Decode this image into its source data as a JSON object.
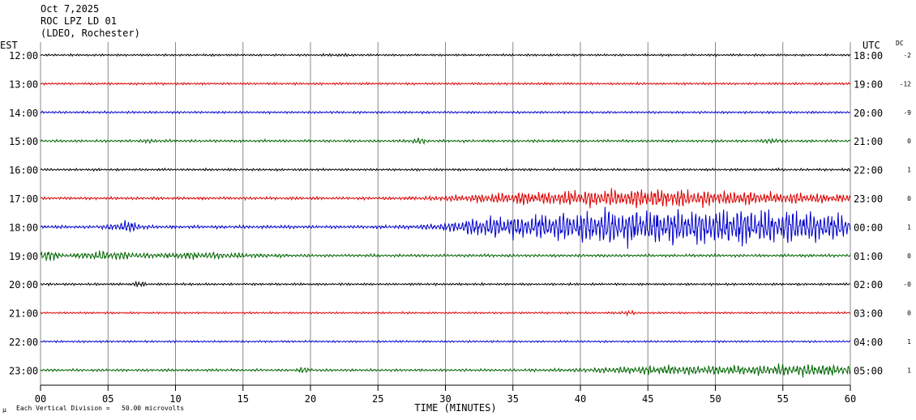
{
  "header": {
    "date": "Oct 7,2025",
    "station": "ROC LPZ LD 01",
    "network": "(LDEO, Rochester)"
  },
  "footer": {
    "icon_mark": "μ",
    "scale_note": "Each Vertical Division =   50.00 microvolts"
  },
  "chart_data": {
    "type": "line",
    "title": "",
    "left_axis_title": "EST",
    "right_axis_title": "UTC",
    "dc_header": "DC",
    "xlabel": "TIME (MINUTES)",
    "xlim": [
      0,
      60
    ],
    "x_ticks": [
      0,
      5,
      10,
      15,
      20,
      25,
      30,
      35,
      40,
      45,
      50,
      55,
      60
    ],
    "x_tick_labels": [
      "00",
      "05",
      "10",
      "15",
      "20",
      "25",
      "30",
      "35",
      "40",
      "45",
      "50",
      "55",
      "60"
    ],
    "grid": "vertical every 5 minutes",
    "colors": [
      "#000000",
      "#dd0000",
      "#0000cc",
      "#006600"
    ],
    "traces": [
      {
        "est": "12:00",
        "utc": "18:00",
        "dc": "-2",
        "color": "#000000",
        "base_amp": 1.5,
        "bursts": [
          [
            22.0,
            0.6,
            1.0
          ]
        ]
      },
      {
        "est": "13:00",
        "utc": "19:00",
        "dc": "-12",
        "color": "#dd0000",
        "base_amp": 1.6,
        "bursts": []
      },
      {
        "est": "14:00",
        "utc": "20:00",
        "dc": "-9",
        "color": "#0000cc",
        "base_amp": 1.6,
        "bursts": []
      },
      {
        "est": "15:00",
        "utc": "21:00",
        "dc": "0",
        "color": "#006600",
        "base_amp": 1.8,
        "bursts": [
          [
            28.0,
            0.5,
            3.0
          ],
          [
            54.2,
            0.4,
            2.5
          ],
          [
            8.2,
            0.6,
            1.2
          ]
        ]
      },
      {
        "est": "16:00",
        "utc": "22:00",
        "dc": "1",
        "color": "#000000",
        "base_amp": 1.6,
        "bursts": []
      },
      {
        "est": "17:00",
        "utc": "23:00",
        "dc": "0",
        "color": "#dd0000",
        "base_amp": 2.0,
        "bursts": [
          [
            34.0,
            3.0,
            2.5
          ],
          [
            42.0,
            5.5,
            9.5
          ],
          [
            49.0,
            4.0,
            5.0
          ],
          [
            57.0,
            4.0,
            4.5
          ]
        ]
      },
      {
        "est": "18:00",
        "utc": "00:00",
        "dc": "1",
        "color": "#0000cc",
        "base_amp": 2.2,
        "bursts": [
          [
            6.3,
            0.8,
            6.0
          ],
          [
            33.0,
            2.0,
            6.0
          ],
          [
            40.0,
            5.0,
            15.0
          ],
          [
            48.0,
            6.0,
            15.0
          ],
          [
            56.0,
            5.0,
            16.0
          ]
        ]
      },
      {
        "est": "19:00",
        "utc": "01:00",
        "dc": "0",
        "color": "#006600",
        "base_amp": 2.0,
        "bursts": [
          [
            0.4,
            0.6,
            7.0
          ],
          [
            5.0,
            1.5,
            5.0
          ],
          [
            12.0,
            3.0,
            3.0
          ]
        ]
      },
      {
        "est": "20:00",
        "utc": "02:00",
        "dc": "-0",
        "color": "#000000",
        "base_amp": 1.6,
        "bursts": [
          [
            7.3,
            0.4,
            2.5
          ]
        ]
      },
      {
        "est": "21:00",
        "utc": "03:00",
        "dc": "0",
        "color": "#dd0000",
        "base_amp": 1.4,
        "bursts": [
          [
            43.4,
            0.4,
            2.5
          ]
        ]
      },
      {
        "est": "22:00",
        "utc": "04:00",
        "dc": "1",
        "color": "#0000cc",
        "base_amp": 1.4,
        "bursts": []
      },
      {
        "est": "23:00",
        "utc": "05:00",
        "dc": "1",
        "color": "#006600",
        "base_amp": 1.8,
        "bursts": [
          [
            19.5,
            0.3,
            3.0
          ],
          [
            47.0,
            4.0,
            5.0
          ],
          [
            57.0,
            3.5,
            7.0
          ]
        ]
      }
    ]
  }
}
